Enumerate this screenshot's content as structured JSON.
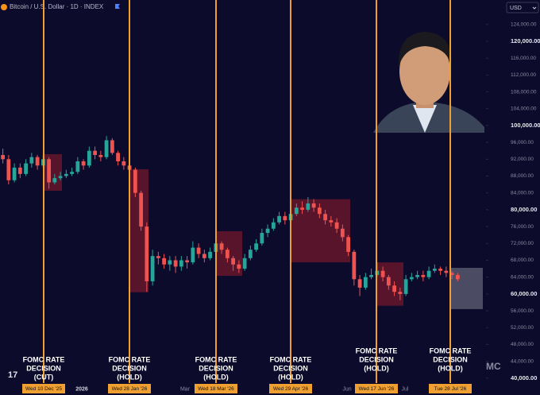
{
  "chart_data": {
    "type": "candlestick",
    "title": "Bitcoin / U.S. Dollar · 1D · INDEX",
    "currency": "USD",
    "up_color": "#26a69a",
    "down_color": "#ef5350",
    "open": [
      93000,
      92000,
      87000,
      90000,
      88500,
      91000,
      92500,
      90500,
      92000,
      86500,
      87500,
      88000,
      88500,
      89000,
      91500,
      90500,
      94000,
      93000,
      92500,
      96500,
      93500,
      91500,
      90500,
      89500,
      84000,
      76000,
      63000,
      69000,
      68500,
      67000,
      68000,
      66500,
      68000,
      67500,
      71000,
      69500,
      68500,
      70000,
      72000,
      70500,
      68500,
      67000,
      66000,
      68500,
      70500,
      72000,
      74500,
      75500,
      77000,
      78500,
      77500,
      79000,
      80500,
      80000,
      81500,
      80500,
      79000,
      77500,
      77000,
      75500,
      73500,
      70000,
      63500,
      61500,
      64000,
      64500,
      65500,
      64000,
      62000,
      60500,
      60000,
      63500,
      64000,
      64500,
      64000,
      65500,
      66000,
      65500,
      65000,
      64500
    ],
    "high": [
      94500,
      93000,
      91000,
      91000,
      92000,
      93500,
      93000,
      93000,
      92500,
      88500,
      89000,
      89500,
      90000,
      92500,
      92000,
      95000,
      95000,
      94000,
      97500,
      97000,
      94000,
      92500,
      91500,
      90000,
      84500,
      77000,
      70500,
      70000,
      69500,
      69000,
      69000,
      69000,
      69000,
      72500,
      72000,
      70500,
      71000,
      73500,
      72500,
      71000,
      69000,
      68000,
      69500,
      71500,
      73000,
      75500,
      76500,
      78000,
      79500,
      79500,
      80000,
      81500,
      82000,
      83000,
      82500,
      81500,
      80000,
      78500,
      78000,
      76500,
      74000,
      70500,
      64500,
      65000,
      66000,
      67500,
      66500,
      64500,
      63000,
      61500,
      64500,
      65000,
      65500,
      65500,
      66500,
      67000,
      66500,
      66500,
      65500,
      65000
    ],
    "low": [
      91000,
      86000,
      86500,
      87500,
      88000,
      90000,
      89500,
      90000,
      85000,
      86000,
      87000,
      87500,
      88000,
      88500,
      89500,
      90000,
      92000,
      91500,
      92000,
      93000,
      90500,
      89500,
      88500,
      83000,
      75000,
      60500,
      62000,
      67000,
      66000,
      65500,
      65000,
      65500,
      66000,
      67000,
      68500,
      67500,
      68000,
      69500,
      69500,
      67500,
      65500,
      65000,
      65500,
      68000,
      70000,
      71500,
      73500,
      75000,
      76500,
      76500,
      77000,
      78500,
      79000,
      79500,
      79500,
      78000,
      76500,
      76000,
      74500,
      72500,
      69000,
      62000,
      59500,
      61000,
      63500,
      64000,
      63000,
      61000,
      59500,
      58500,
      59500,
      63000,
      63500,
      63000,
      63500,
      65000,
      64500,
      64000,
      63500,
      63000
    ],
    "close": [
      92000,
      87000,
      90000,
      88500,
      91000,
      92500,
      90500,
      92000,
      86500,
      87500,
      88000,
      88500,
      89000,
      91500,
      90500,
      94000,
      93000,
      92500,
      96500,
      93500,
      91500,
      90500,
      89500,
      84000,
      76000,
      63000,
      69000,
      68500,
      67000,
      68000,
      66500,
      68000,
      67500,
      71000,
      69500,
      68500,
      70000,
      72000,
      70500,
      68500,
      67000,
      66000,
      68500,
      70500,
      72000,
      74500,
      75500,
      77000,
      78500,
      77500,
      79000,
      80500,
      80000,
      81500,
      80500,
      79000,
      77500,
      77000,
      75500,
      73500,
      70000,
      63500,
      61500,
      64000,
      64500,
      65500,
      64000,
      62000,
      60500,
      60000,
      63500,
      64000,
      64500,
      64000,
      65500,
      66000,
      65500,
      65000,
      64500,
      63500
    ],
    "ylim": [
      36000,
      130000
    ],
    "yticks": [
      {
        "value": 40000,
        "label": "40,000.00"
      },
      {
        "value": 44000,
        "label": "44,000.00"
      },
      {
        "value": 48000,
        "label": "48,000.00"
      },
      {
        "value": 52000,
        "label": "52,000.00"
      },
      {
        "value": 56000,
        "label": "56,000.00"
      },
      {
        "value": 60000,
        "label": "60,000.00"
      },
      {
        "value": 64000,
        "label": "64,000.00"
      },
      {
        "value": 68000,
        "label": "68,000.00"
      },
      {
        "value": 72000,
        "label": "72,000.00"
      },
      {
        "value": 76000,
        "label": "76,000.00"
      },
      {
        "value": 80000,
        "label": "80,000.00"
      },
      {
        "value": 84000,
        "label": "84,000.00"
      },
      {
        "value": 88000,
        "label": "88,000.00"
      },
      {
        "value": 92000,
        "label": "92,000.00"
      },
      {
        "value": 96000,
        "label": "96,000.00"
      },
      {
        "value": 100000,
        "label": "100,000.00"
      },
      {
        "value": 104000,
        "label": "104,000.00"
      },
      {
        "value": 108000,
        "label": "108,000.00"
      },
      {
        "value": 112000,
        "label": "112,000.00"
      },
      {
        "value": 116000,
        "label": "116,000.00"
      },
      {
        "value": 120000,
        "label": "120,000.00"
      },
      {
        "value": 124000,
        "label": "124,000.00"
      }
    ],
    "xticks": [
      "2026",
      "Mar",
      "Jun",
      "Jul"
    ],
    "events": [
      {
        "lines": [
          "FOMC RATE",
          "DECISION",
          "(CUT)"
        ],
        "date": "Wed 10 Dec '25",
        "zone": [
          84500,
          93200
        ],
        "zone_color": "#8b1a2a"
      },
      {
        "lines": [
          "FOMC RATE",
          "DECISION",
          "(HOLD)"
        ],
        "date": "Wed 28 Jan '26",
        "zone": [
          60400,
          89600
        ],
        "zone_color": "#8b1a2a"
      },
      {
        "lines": [
          "FOMC RATE",
          "DECISION",
          "(HOLD)"
        ],
        "date": "Wed 18 Mar '26",
        "zone": [
          64300,
          74900
        ],
        "zone_color": "#8b1a2a"
      },
      {
        "lines": [
          "FOMC RATE",
          "DECISION",
          "(HOLD)"
        ],
        "date": "Wed 29 Apr '26",
        "zone": [
          67500,
          82500
        ],
        "zone_color": "#8b1a2a"
      },
      {
        "lines": [
          "FOMC RATE",
          "DECISION",
          "(HOLD)"
        ],
        "date": "Wed 17 Jun '26",
        "zone": [
          57200,
          67500
        ],
        "zone_color": "#8b1a2a"
      },
      {
        "lines": [
          "FOMC RATE",
          "DECISION",
          "(HOLD)"
        ],
        "date": "Tue 28 Jul '26",
        "zone": [
          56400,
          66200
        ],
        "zone_color": "#9a9aa8"
      }
    ],
    "event_line_color": "#f0a030"
  }
}
